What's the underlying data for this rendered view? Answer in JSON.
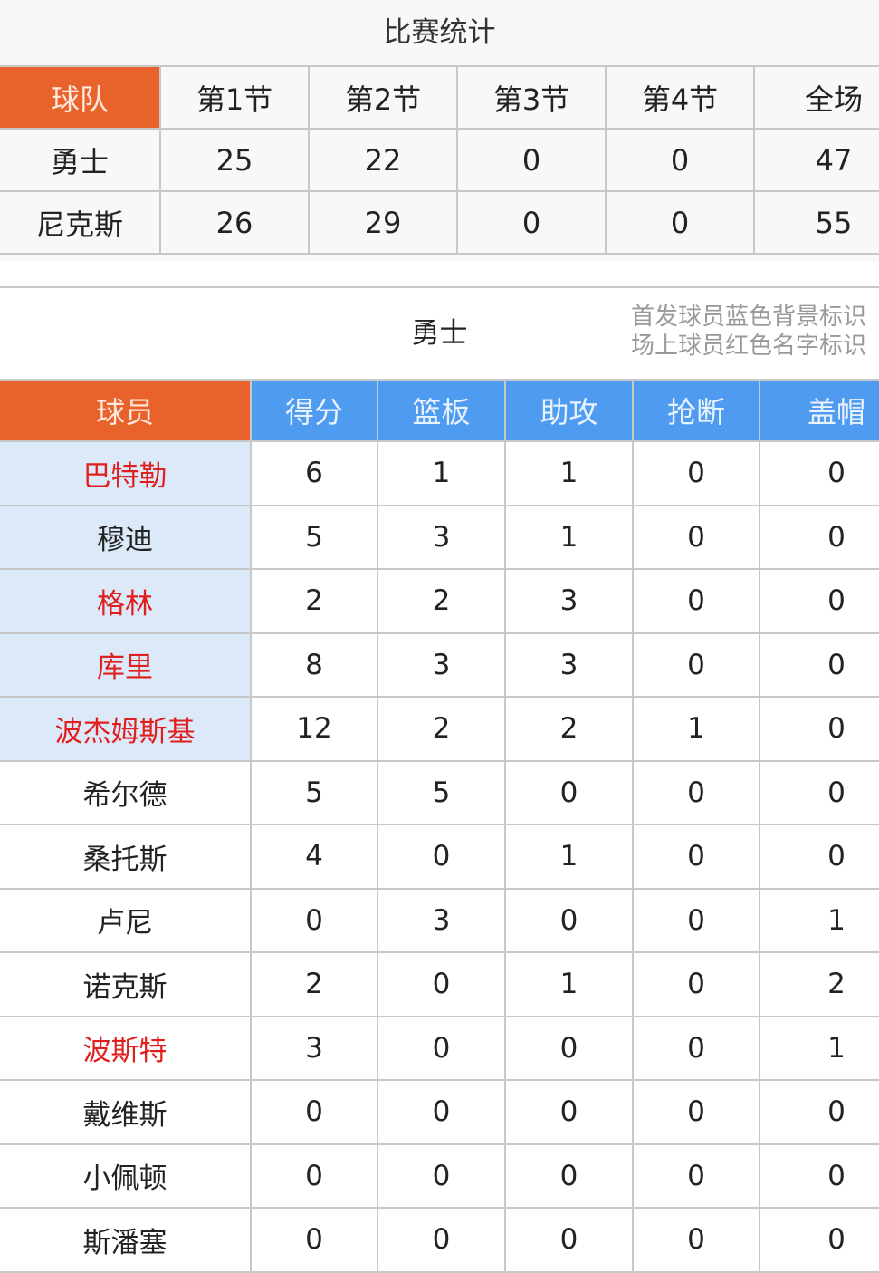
{
  "title": "比赛统计",
  "score_table": {
    "headers": [
      "球队",
      "第1节",
      "第2节",
      "第3节",
      "第4节",
      "全场"
    ],
    "rows": [
      {
        "team": "勇士",
        "values": [
          "25",
          "22",
          "0",
          "0",
          "47"
        ]
      },
      {
        "team": "尼克斯",
        "values": [
          "26",
          "29",
          "0",
          "0",
          "55"
        ]
      }
    ]
  },
  "player_section": {
    "team": "勇士",
    "note_line1": "首发球员蓝色背景标识",
    "note_line2": "场上球员红色名字标识",
    "headers": [
      "球员",
      "得分",
      "篮板",
      "助攻",
      "抢断",
      "盖帽"
    ],
    "colors": {
      "header_orange": "#e8622c",
      "header_blue": "#4f9bf0",
      "starter_bg": "#dce9f8",
      "on_court_red": "#e0201e"
    },
    "rows": [
      {
        "name": "巴特勒",
        "starter": true,
        "on_court": true,
        "stats": [
          "6",
          "1",
          "1",
          "0",
          "0"
        ]
      },
      {
        "name": "穆迪",
        "starter": true,
        "on_court": false,
        "stats": [
          "5",
          "3",
          "1",
          "0",
          "0"
        ]
      },
      {
        "name": "格林",
        "starter": true,
        "on_court": true,
        "stats": [
          "2",
          "2",
          "3",
          "0",
          "0"
        ]
      },
      {
        "name": "库里",
        "starter": true,
        "on_court": true,
        "stats": [
          "8",
          "3",
          "3",
          "0",
          "0"
        ]
      },
      {
        "name": "波杰姆斯基",
        "starter": true,
        "on_court": true,
        "stats": [
          "12",
          "2",
          "2",
          "1",
          "0"
        ]
      },
      {
        "name": "希尔德",
        "starter": false,
        "on_court": false,
        "stats": [
          "5",
          "5",
          "0",
          "0",
          "0"
        ]
      },
      {
        "name": "桑托斯",
        "starter": false,
        "on_court": false,
        "stats": [
          "4",
          "0",
          "1",
          "0",
          "0"
        ]
      },
      {
        "name": "卢尼",
        "starter": false,
        "on_court": false,
        "stats": [
          "0",
          "3",
          "0",
          "0",
          "1"
        ]
      },
      {
        "name": "诺克斯",
        "starter": false,
        "on_court": false,
        "stats": [
          "2",
          "0",
          "1",
          "0",
          "2"
        ]
      },
      {
        "name": "波斯特",
        "starter": false,
        "on_court": true,
        "stats": [
          "3",
          "0",
          "0",
          "0",
          "1"
        ]
      },
      {
        "name": "戴维斯",
        "starter": false,
        "on_court": false,
        "stats": [
          "0",
          "0",
          "0",
          "0",
          "0"
        ]
      },
      {
        "name": "小佩顿",
        "starter": false,
        "on_court": false,
        "stats": [
          "0",
          "0",
          "0",
          "0",
          "0"
        ]
      },
      {
        "name": "斯潘塞",
        "starter": false,
        "on_court": false,
        "stats": [
          "0",
          "0",
          "0",
          "0",
          "0"
        ]
      }
    ]
  }
}
